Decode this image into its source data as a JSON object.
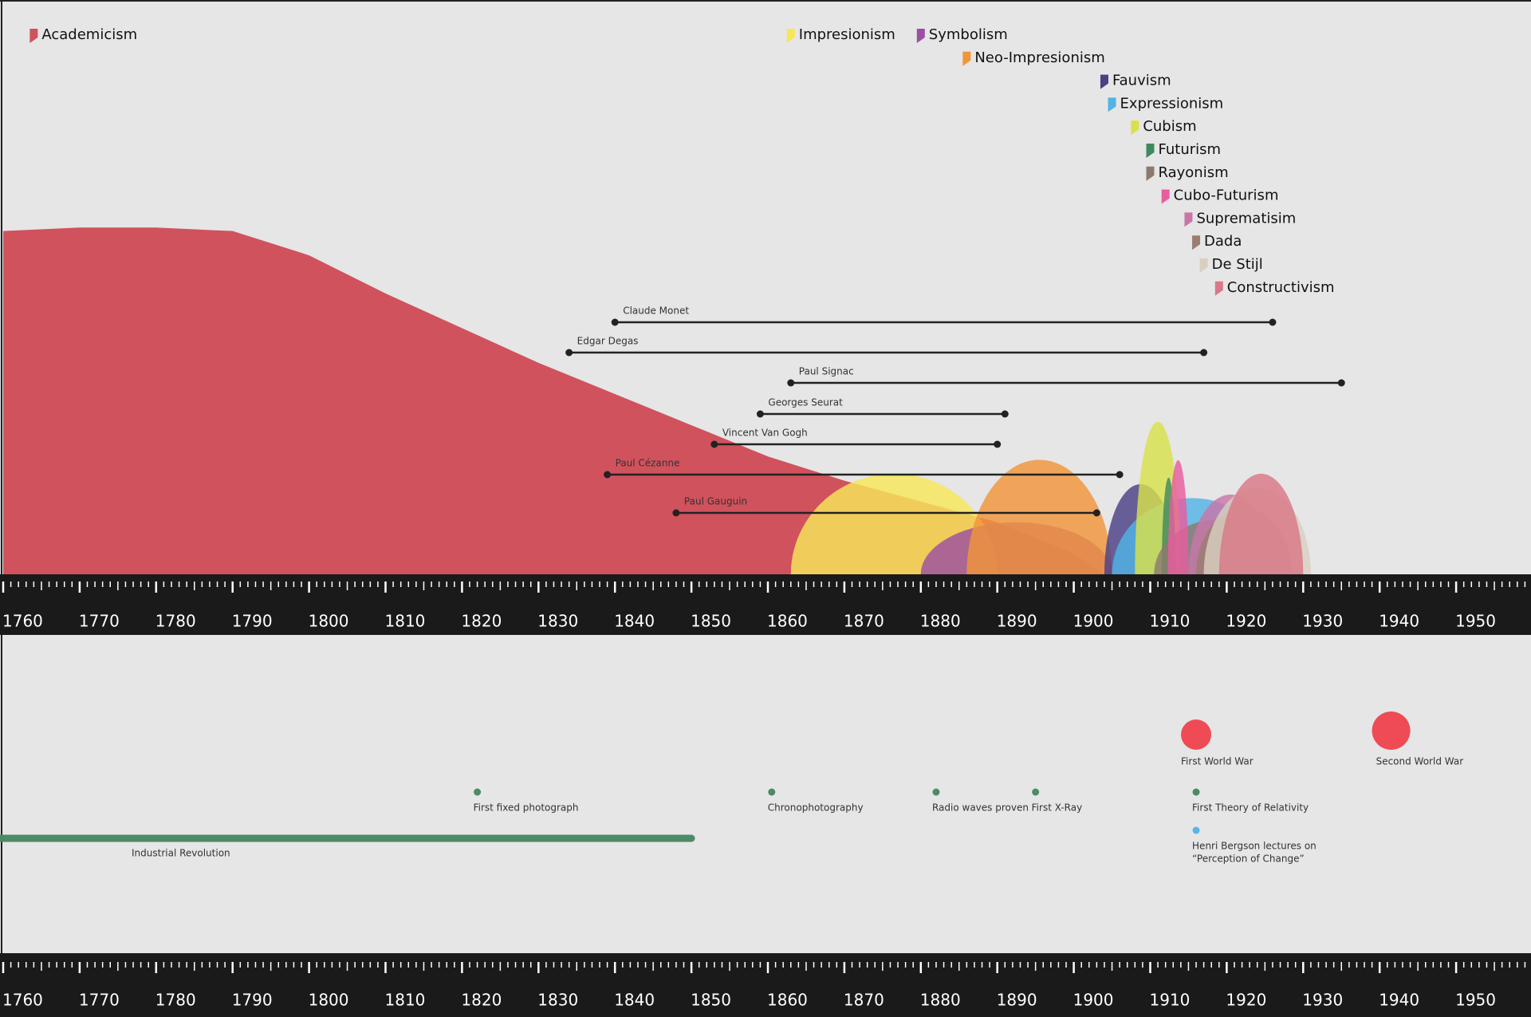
{
  "axis": {
    "ticks": [
      1760,
      1770,
      1780,
      1790,
      1800,
      1810,
      1820,
      1830,
      1840,
      1850,
      1860,
      1870,
      1880,
      1890,
      1900,
      1910,
      1920,
      1930,
      1940,
      1950
    ],
    "range": [
      1760,
      1959
    ]
  },
  "movements": [
    {
      "name": "Academicism",
      "color": "#d0525d",
      "year": 1764,
      "row": 0,
      "area": {
        "x": [
          1760,
          1770,
          1780,
          1790,
          1800,
          1810,
          1820,
          1830,
          1840,
          1850,
          1860,
          1870,
          1880,
          1890,
          1900,
          1904
        ],
        "values": [
          99,
          100,
          100,
          99,
          92,
          81,
          71,
          61,
          52,
          43,
          34,
          27,
          21,
          15,
          6,
          0
        ]
      }
    },
    {
      "name": "Impresionism",
      "color": "#f6e65a",
      "year": 1863,
      "row": 0,
      "span": [
        1863,
        1890
      ],
      "peak": 29
    },
    {
      "name": "Symbolism",
      "color": "#9b4fa0",
      "year": 1880,
      "row": 0,
      "span": [
        1880,
        1905
      ],
      "peak": 15
    },
    {
      "name": "Neo-Impresionism",
      "color": "#f0953a",
      "year": 1886,
      "row": 1,
      "span": [
        1886,
        1905
      ],
      "peak": 33
    },
    {
      "name": "Fauvism",
      "color": "#4b3f86",
      "year": 1904,
      "row": 2,
      "span": [
        1904,
        1913.5
      ],
      "peak": 26
    },
    {
      "name": "Expressionism",
      "color": "#52b3e6",
      "year": 1905,
      "row": 3,
      "span": [
        1905,
        1926
      ],
      "peak": 22
    },
    {
      "name": "Cubism",
      "color": "#d8e04c",
      "year": 1908,
      "row": 4,
      "span": [
        1908,
        1914
      ],
      "peak": 44
    },
    {
      "name": "Futurism",
      "color": "#3e8a5e",
      "year": 1910,
      "row": 5,
      "span": [
        1911.5,
        1913.3
      ],
      "peak": 28
    },
    {
      "name": "Rayonism",
      "color": "#8c7a6e",
      "year": 1910,
      "row": 6,
      "span": [
        1910.5,
        1928
      ],
      "peak": 16
    },
    {
      "name": "Cubo-Futurism",
      "color": "#e85da0",
      "year": 1912,
      "row": 7,
      "span": [
        1912.3,
        1915
      ],
      "peak": 33
    },
    {
      "name": "Suprematisim",
      "color": "#c876a8",
      "year": 1915,
      "row": 8,
      "span": [
        1915,
        1926
      ],
      "peak": 23
    },
    {
      "name": "Dada",
      "color": "#9a7e72",
      "year": 1916,
      "row": 9,
      "span": [
        1916,
        1928.5
      ],
      "peak": 19
    },
    {
      "name": "De Stijl",
      "color": "#d8cfc0",
      "year": 1917,
      "row": 10,
      "span": [
        1917,
        1931
      ],
      "peak": 25
    },
    {
      "name": "Constructivism",
      "color": "#d97886",
      "year": 1919,
      "row": 11,
      "span": [
        1919,
        1930
      ],
      "peak": 29
    }
  ],
  "artists": [
    {
      "name": "Claude Monet",
      "years": [
        1840,
        1926
      ]
    },
    {
      "name": "Edgar Degas",
      "years": [
        1834,
        1917
      ]
    },
    {
      "name": "Paul Signac",
      "years": [
        1863,
        1935
      ]
    },
    {
      "name": "Georges Seurat",
      "years": [
        1859,
        1891
      ]
    },
    {
      "name": "Vincent Van Gogh",
      "years": [
        1853,
        1890
      ]
    },
    {
      "name": "Paul Cézanne",
      "years": [
        1839,
        1906
      ]
    },
    {
      "name": "Paul Gauguin",
      "years": [
        1848,
        1903
      ]
    }
  ],
  "wars": [
    {
      "label": "First World War",
      "year": 1916
    },
    {
      "label": "Second World War",
      "year": 1941.5
    }
  ],
  "events": [
    {
      "label": "First fixed photograph",
      "year": 1822
    },
    {
      "label": "Chronophotography",
      "year": 1860.5
    },
    {
      "label": "Radio waves proven",
      "year": 1882
    },
    {
      "label": "First X-Ray",
      "year": 1895
    },
    {
      "label": "First Theory of Relativity",
      "year": 1916
    }
  ],
  "lecture": {
    "lines": [
      "Henri Bergson lectures on",
      "“Perception of Change”"
    ],
    "year": 1916
  },
  "period": {
    "label": "Industrial Revolution",
    "years": [
      1760,
      1850
    ]
  }
}
